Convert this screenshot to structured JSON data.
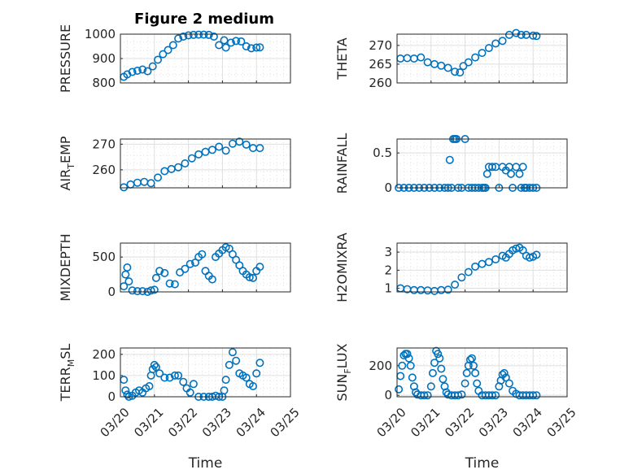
{
  "figure": {
    "title": "Figure 2 medium",
    "colors": {
      "marker": "#0072BD",
      "axis": "#262626",
      "grid": "#dfdfdf"
    }
  },
  "chart_data": [
    {
      "type": "scatter",
      "ylabel": "PRESSURE",
      "ylim": [
        800,
        1000
      ],
      "yticks": [
        800,
        900,
        1000
      ],
      "xticklabels_visible": false,
      "series": [
        {
          "x": [
            0.1,
            0.2,
            0.35,
            0.5,
            0.65,
            0.8,
            0.95,
            1.1,
            1.25,
            1.4,
            1.55,
            1.7,
            1.85,
            2.0,
            2.15,
            2.3,
            2.45,
            2.6,
            2.75,
            2.9,
            3.05,
            3.1,
            3.25,
            3.4,
            3.55,
            3.7,
            3.85,
            4.0,
            4.1
          ],
          "y": [
            825,
            835,
            845,
            850,
            855,
            848,
            868,
            895,
            918,
            935,
            955,
            982,
            990,
            995,
            997,
            998,
            998,
            997,
            990,
            955,
            975,
            945,
            965,
            972,
            970,
            950,
            942,
            945,
            946
          ]
        }
      ]
    },
    {
      "type": "scatter",
      "ylabel": "THETA",
      "ylim": [
        260,
        273
      ],
      "yticks": [
        260,
        265,
        270
      ],
      "xticklabels_visible": false,
      "series": [
        {
          "x": [
            0.1,
            0.3,
            0.5,
            0.7,
            0.9,
            1.1,
            1.3,
            1.5,
            1.7,
            1.85,
            1.95,
            2.1,
            2.3,
            2.5,
            2.7,
            2.9,
            3.1,
            3.3,
            3.5,
            3.65,
            3.8,
            4.0,
            4.1
          ],
          "y": [
            266.5,
            266.6,
            266.5,
            266.8,
            265.5,
            265.0,
            264.6,
            264.0,
            263.0,
            262.8,
            264.5,
            265.5,
            266.8,
            268.0,
            269.3,
            270.5,
            271.2,
            272.8,
            273.3,
            272.8,
            272.8,
            272.6,
            272.5
          ]
        }
      ]
    },
    {
      "type": "scatter",
      "ylabel": "AIR_TEMP",
      "ylabel_sub": "T",
      "ylabel_pre": "AIR",
      "ylabel_post": "EMP",
      "ylim": [
        253,
        272
      ],
      "yticks": [
        260,
        270
      ],
      "xticklabels_visible": false,
      "series": [
        {
          "x": [
            0.1,
            0.3,
            0.5,
            0.7,
            0.9,
            1.1,
            1.3,
            1.5,
            1.7,
            1.9,
            2.1,
            2.3,
            2.5,
            2.7,
            2.9,
            3.1,
            3.3,
            3.5,
            3.7,
            3.9,
            4.1
          ],
          "y": [
            253.2,
            254.3,
            255.0,
            255.3,
            254.8,
            257.0,
            259.5,
            260.3,
            261.0,
            262.5,
            264.5,
            266.0,
            267.0,
            267.8,
            269.0,
            267.5,
            270.2,
            271.0,
            269.8,
            268.5,
            268.5
          ]
        }
      ]
    },
    {
      "type": "scatter",
      "ylabel": "RAINFALL",
      "ylim": [
        0,
        0.7
      ],
      "yticks": [
        0,
        0.5
      ],
      "xticklabels_visible": false,
      "series": [
        {
          "x": [
            0.05,
            0.2,
            0.35,
            0.5,
            0.65,
            0.8,
            0.95,
            1.1,
            1.25,
            1.4,
            1.5,
            1.55,
            1.6,
            1.65,
            1.7,
            1.75,
            1.8,
            1.9,
            2.0,
            2.1,
            2.2,
            2.3,
            2.4,
            2.5,
            2.55,
            2.6,
            2.65,
            2.7,
            2.8,
            2.9,
            3.0,
            3.1,
            3.2,
            3.3,
            3.35,
            3.4,
            3.5,
            3.6,
            3.65,
            3.7,
            3.75,
            3.8,
            3.9,
            4.0,
            4.1
          ],
          "y": [
            0,
            0,
            0,
            0,
            0,
            0,
            0,
            0,
            0,
            0,
            0,
            0.4,
            0,
            0.7,
            0.7,
            0.7,
            0,
            0,
            0.7,
            0,
            0,
            0,
            0,
            0,
            0,
            0,
            0.2,
            0.3,
            0.3,
            0.3,
            0,
            0.3,
            0.25,
            0.3,
            0.2,
            0,
            0.3,
            0.2,
            0,
            0.3,
            0,
            0,
            0,
            0,
            0
          ]
        }
      ]
    },
    {
      "type": "scatter",
      "ylabel": "MIXDEPTH",
      "ylim": [
        0,
        700
      ],
      "yticks": [
        0,
        500
      ],
      "xticklabels_visible": false,
      "series": [
        {
          "x": [
            0.1,
            0.15,
            0.2,
            0.25,
            0.35,
            0.5,
            0.65,
            0.8,
            0.9,
            1.0,
            1.05,
            1.15,
            1.3,
            1.45,
            1.6,
            1.75,
            1.9,
            2.05,
            2.2,
            2.3,
            2.4,
            2.5,
            2.6,
            2.7,
            2.8,
            2.9,
            3.0,
            3.1,
            3.2,
            3.3,
            3.4,
            3.5,
            3.6,
            3.7,
            3.8,
            3.9,
            4.0,
            4.1
          ],
          "y": [
            80,
            250,
            350,
            150,
            20,
            10,
            10,
            0,
            20,
            30,
            200,
            300,
            270,
            120,
            110,
            280,
            330,
            400,
            420,
            500,
            540,
            300,
            230,
            180,
            500,
            550,
            600,
            640,
            620,
            540,
            460,
            380,
            300,
            250,
            210,
            200,
            300,
            360
          ]
        }
      ]
    },
    {
      "type": "scatter",
      "ylabel": "H2OMIXRA",
      "ylim": [
        0.8,
        3.5
      ],
      "yticks": [
        1,
        2,
        3
      ],
      "xticklabels_visible": false,
      "series": [
        {
          "x": [
            0.1,
            0.3,
            0.5,
            0.7,
            0.9,
            1.1,
            1.3,
            1.5,
            1.7,
            1.9,
            2.1,
            2.3,
            2.5,
            2.7,
            2.9,
            3.1,
            3.2,
            3.3,
            3.4,
            3.5,
            3.6,
            3.7,
            3.8,
            3.9,
            4.0,
            4.1
          ],
          "y": [
            1.0,
            0.95,
            0.9,
            0.9,
            0.88,
            0.85,
            0.9,
            0.92,
            1.2,
            1.6,
            1.9,
            2.2,
            2.35,
            2.45,
            2.6,
            2.8,
            2.7,
            2.9,
            3.1,
            3.2,
            3.25,
            3.1,
            2.8,
            2.7,
            2.75,
            2.85
          ]
        }
      ]
    },
    {
      "type": "scatter",
      "ylabel": "TERR_MSL",
      "ylabel_pre": "TERR",
      "ylabel_sub": "M",
      "ylabel_post": "SL",
      "ylim": [
        0,
        230
      ],
      "yticks": [
        0,
        100,
        200
      ],
      "xticklabels": [
        "03/20",
        "03/21",
        "03/22",
        "03/23",
        "03/24",
        "03/25"
      ],
      "series": [
        {
          "x": [
            0.1,
            0.15,
            0.2,
            0.25,
            0.35,
            0.45,
            0.55,
            0.65,
            0.75,
            0.85,
            0.9,
            0.95,
            1.0,
            1.05,
            1.15,
            1.3,
            1.45,
            1.6,
            1.7,
            1.85,
            1.95,
            2.05,
            2.15,
            2.3,
            2.45,
            2.6,
            2.7,
            2.8,
            2.9,
            3.0,
            3.05,
            3.1,
            3.2,
            3.3,
            3.4,
            3.5,
            3.6,
            3.7,
            3.8,
            3.9,
            4.0,
            4.1
          ],
          "y": [
            80,
            30,
            10,
            0,
            5,
            20,
            30,
            20,
            40,
            50,
            100,
            130,
            150,
            140,
            110,
            90,
            90,
            100,
            100,
            70,
            40,
            20,
            60,
            0,
            0,
            0,
            0,
            5,
            0,
            0,
            30,
            80,
            150,
            210,
            170,
            110,
            100,
            90,
            60,
            50,
            110,
            160
          ]
        }
      ]
    },
    {
      "type": "scatter",
      "ylabel": "SUN_FLUX",
      "ylabel_pre": "SUN",
      "ylabel_sub": "F",
      "ylabel_post": "LUX",
      "ylim": [
        -10,
        320
      ],
      "yticks": [
        0,
        200
      ],
      "xticklabels": [
        "03/20",
        "03/21",
        "03/22",
        "03/23",
        "03/24",
        "03/25"
      ],
      "series": [
        {
          "x": [
            0.05,
            0.1,
            0.15,
            0.2,
            0.25,
            0.3,
            0.35,
            0.4,
            0.45,
            0.5,
            0.55,
            0.6,
            0.7,
            0.8,
            0.9,
            1.0,
            1.05,
            1.1,
            1.15,
            1.2,
            1.25,
            1.3,
            1.35,
            1.4,
            1.45,
            1.5,
            1.6,
            1.7,
            1.8,
            1.9,
            2.0,
            2.05,
            2.1,
            2.15,
            2.2,
            2.25,
            2.3,
            2.35,
            2.4,
            2.5,
            2.6,
            2.7,
            2.8,
            2.9,
            3.0,
            3.05,
            3.1,
            3.15,
            3.2,
            3.3,
            3.4,
            3.5,
            3.6,
            3.7,
            3.8,
            3.9,
            4.0,
            4.1
          ],
          "y": [
            40,
            130,
            200,
            270,
            280,
            280,
            250,
            200,
            120,
            60,
            20,
            5,
            0,
            0,
            0,
            60,
            150,
            220,
            300,
            280,
            250,
            180,
            110,
            60,
            20,
            5,
            0,
            0,
            0,
            5,
            80,
            150,
            200,
            240,
            250,
            200,
            150,
            80,
            30,
            0,
            0,
            0,
            0,
            0,
            60,
            100,
            140,
            150,
            120,
            80,
            30,
            10,
            0,
            0,
            0,
            0,
            0,
            0
          ]
        }
      ]
    }
  ],
  "axes_common": {
    "xlabel": "Time",
    "xlim": [
      0,
      5
    ]
  }
}
